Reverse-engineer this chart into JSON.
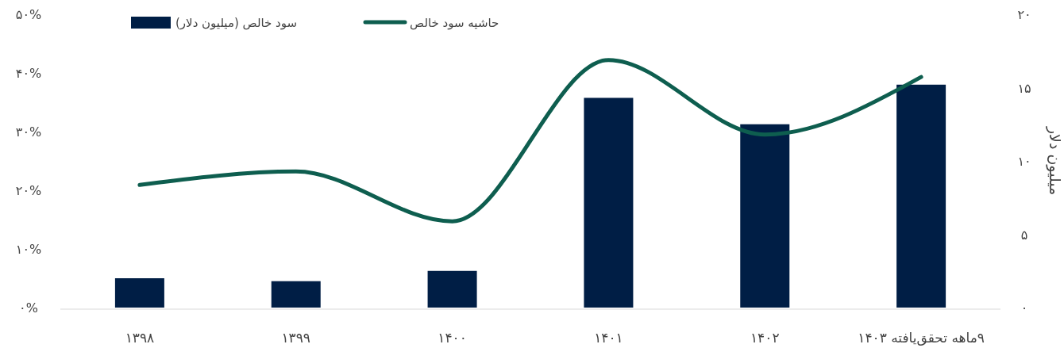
{
  "chart_data": {
    "type": "bar",
    "categories": [
      "۱۳۹۸",
      "۱۳۹۹",
      "۱۴۰۰",
      "۱۴۰۱",
      "۱۴۰۲",
      "۹ماهه تحقق‌یافته ۱۴۰۳"
    ],
    "series": [
      {
        "name": "سود خالص (میلیون دلار)",
        "axis": "y2",
        "color": "#001e45",
        "values": [
          2.0,
          1.8,
          2.5,
          14.3,
          12.5,
          15.2
        ]
      },
      {
        "name": "حاشیه سود خالص",
        "type": "line",
        "axis": "y",
        "color": "#0e5e4f",
        "values": [
          20.9,
          23.2,
          14.7,
          42.2,
          29.5,
          39.3
        ]
      }
    ],
    "ylim": [
      0,
      50
    ],
    "yticks": [
      {
        "value": 0,
        "label": "۰%"
      },
      {
        "value": 10,
        "label": "۱۰%"
      },
      {
        "value": 20,
        "label": "۲۰%"
      },
      {
        "value": 30,
        "label": "۳۰%"
      },
      {
        "value": 40,
        "label": "۴۰%"
      },
      {
        "value": 50,
        "label": "۵۰%"
      }
    ],
    "y2lim": [
      0,
      20
    ],
    "y2ticks": [
      {
        "value": 0,
        "label": "۰"
      },
      {
        "value": 5,
        "label": "۵"
      },
      {
        "value": 10,
        "label": "۱۰"
      },
      {
        "value": 15,
        "label": "۱۵"
      },
      {
        "value": 20,
        "label": "۲۰"
      }
    ],
    "y2label": "میلیون دلار",
    "legend": "top",
    "grid": false,
    "marker": "none",
    "line_style": "solid"
  }
}
